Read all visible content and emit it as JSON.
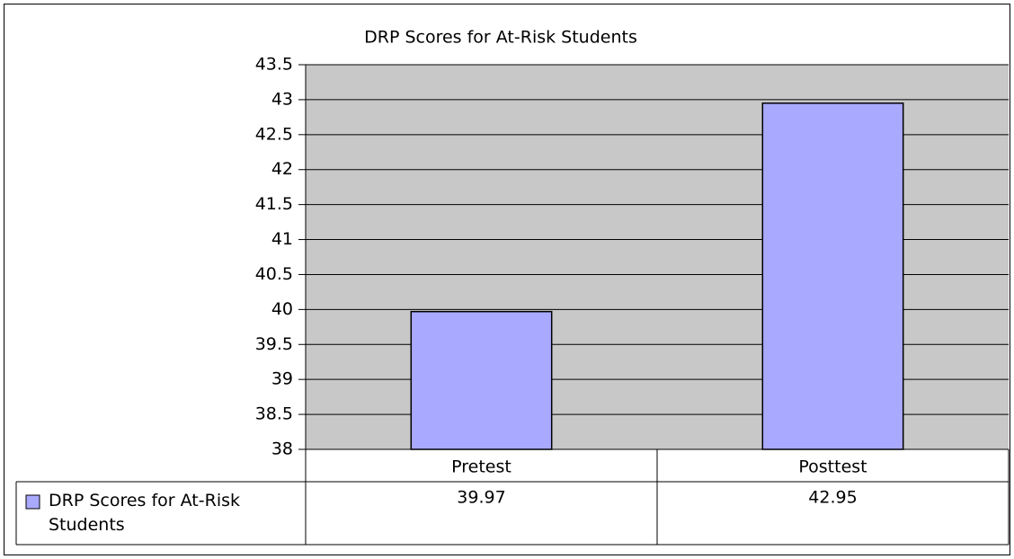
{
  "chart_data": {
    "type": "bar",
    "title": "DRP Scores for At-Risk Students",
    "categories": [
      "Pretest",
      "Posttest"
    ],
    "series": [
      {
        "name": "DRP Scores for At-Risk Students",
        "color": "#a9a9ff",
        "values": [
          39.97,
          42.95
        ]
      }
    ],
    "ylim": [
      38,
      43.5
    ],
    "yticks": [
      38,
      38.5,
      39,
      39.5,
      40,
      40.5,
      41,
      41.5,
      42,
      42.5,
      43,
      43.5
    ],
    "grid": true,
    "data_table": true
  }
}
